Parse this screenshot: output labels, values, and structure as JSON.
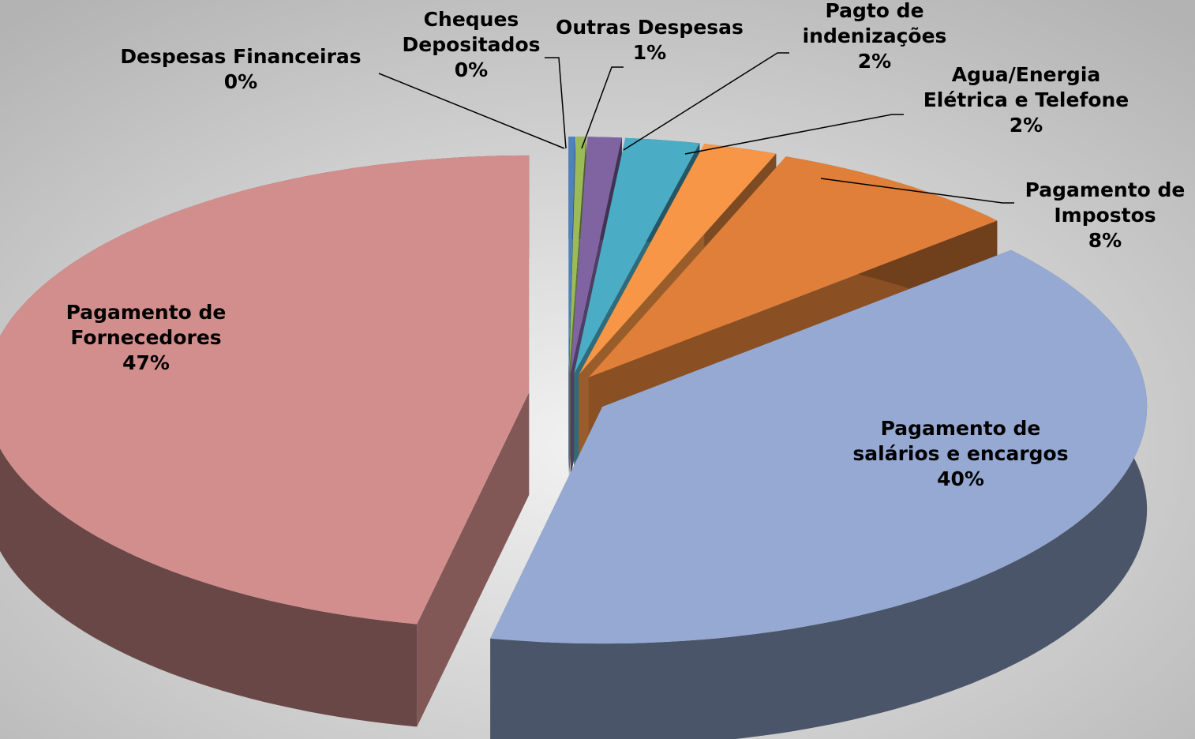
{
  "chart_data": {
    "type": "pie3d",
    "categories": [
      "Despesas Financeiras",
      "Cheques Depositados",
      "Outras Despesas",
      "Pagto de indenizações",
      "Agua/Energia Elétrica e Telefone",
      "Pagamento de Impostos",
      "Pagamento de salários e encargos",
      "Pagamento de Fornecedores"
    ],
    "values": [
      0.2,
      0.3,
      1.0,
      2.2,
      2.2,
      7.6,
      39.8,
      46.7
    ],
    "value_labels": [
      "0%",
      "0%",
      "1%",
      "2%",
      "2%",
      "8%",
      "40%",
      "47%"
    ],
    "colors": [
      "#4f81bd",
      "#9bbb59",
      "#8064a2",
      "#4bacc6",
      "#f79646",
      "#e07f3a",
      "#95a9d3",
      "#d28e8d"
    ]
  }
}
